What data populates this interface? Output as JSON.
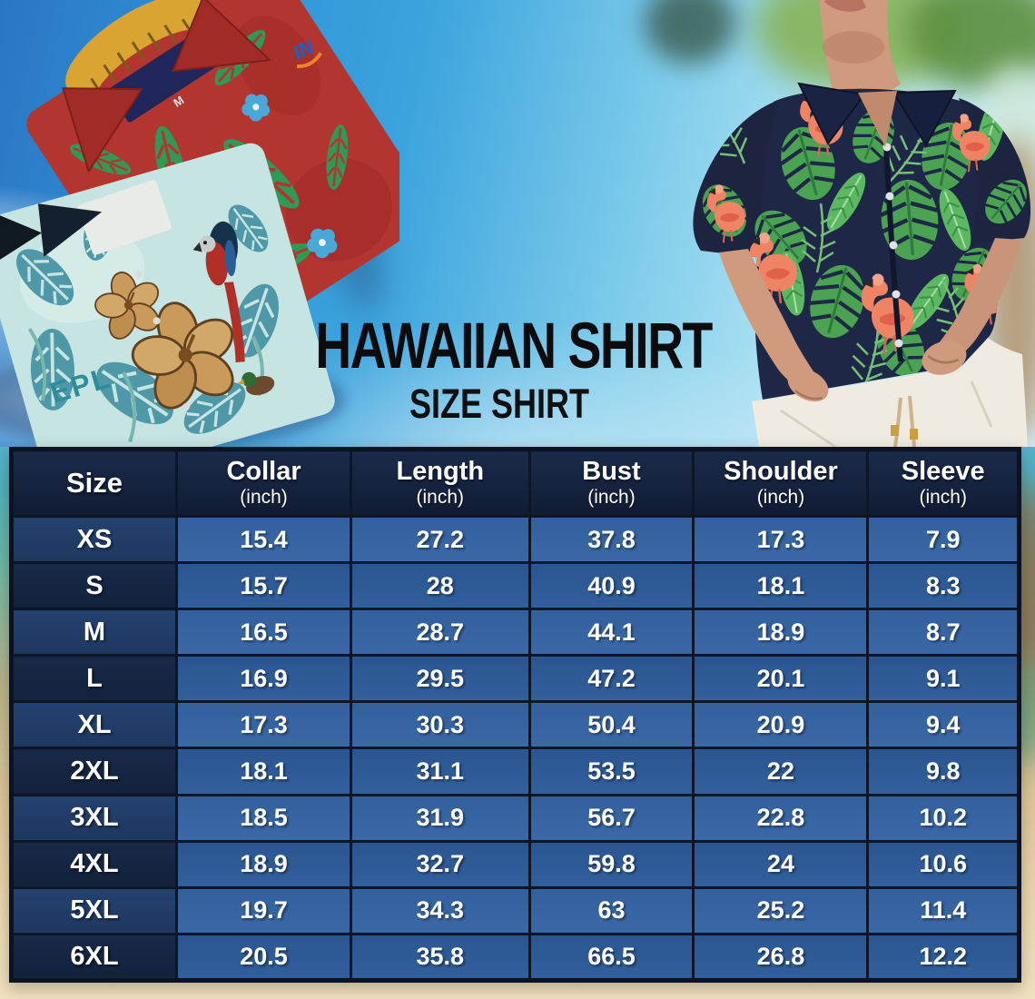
{
  "title": {
    "main": "HAWAIIAN SHIRT",
    "sub": "SIZE SHIRT"
  },
  "hero": {
    "red_shirt_tag": "M",
    "teal_shirt_text": "EPL",
    "logo_text": "IN"
  },
  "size_table": {
    "columns": [
      {
        "label": "Size",
        "unit": ""
      },
      {
        "label": "Collar",
        "unit": "(inch)"
      },
      {
        "label": "Length",
        "unit": "(inch)"
      },
      {
        "label": "Bust",
        "unit": "(inch)"
      },
      {
        "label": "Shoulder",
        "unit": "(inch)"
      },
      {
        "label": "Sleeve",
        "unit": "(inch)"
      }
    ],
    "rows": [
      {
        "size": "XS",
        "values": [
          "15.4",
          "27.2",
          "37.8",
          "17.3",
          "7.9"
        ]
      },
      {
        "size": "S",
        "values": [
          "15.7",
          "28",
          "40.9",
          "18.1",
          "8.3"
        ]
      },
      {
        "size": "M",
        "values": [
          "16.5",
          "28.7",
          "44.1",
          "18.9",
          "8.7"
        ]
      },
      {
        "size": "L",
        "values": [
          "16.9",
          "29.5",
          "47.2",
          "20.1",
          "9.1"
        ]
      },
      {
        "size": "XL",
        "values": [
          "17.3",
          "30.3",
          "50.4",
          "20.9",
          "9.4"
        ]
      },
      {
        "size": "2XL",
        "values": [
          "18.1",
          "31.1",
          "53.5",
          "22",
          "9.8"
        ]
      },
      {
        "size": "3XL",
        "values": [
          "18.5",
          "31.9",
          "56.7",
          "22.8",
          "10.2"
        ]
      },
      {
        "size": "4XL",
        "values": [
          "18.9",
          "32.7",
          "59.8",
          "24",
          "10.6"
        ]
      },
      {
        "size": "5XL",
        "values": [
          "19.7",
          "34.3",
          "63",
          "25.2",
          "11.4"
        ]
      },
      {
        "size": "6XL",
        "values": [
          "20.5",
          "35.8",
          "66.5",
          "26.8",
          "12.2"
        ]
      }
    ]
  },
  "chart_data": {
    "type": "table",
    "title": "Hawaiian Shirt Size Shirt",
    "columns": [
      "Size",
      "Collar (inch)",
      "Length (inch)",
      "Bust (inch)",
      "Shoulder (inch)",
      "Sleeve (inch)"
    ],
    "rows": [
      [
        "XS",
        "15.4",
        "27.2",
        "37.8",
        "17.3",
        "7.9"
      ],
      [
        "S",
        "15.7",
        "28",
        "40.9",
        "18.1",
        "8.3"
      ],
      [
        "M",
        "16.5",
        "28.7",
        "44.1",
        "18.9",
        "8.7"
      ],
      [
        "L",
        "16.9",
        "29.5",
        "47.2",
        "20.1",
        "9.1"
      ],
      [
        "XL",
        "17.3",
        "30.3",
        "50.4",
        "20.9",
        "9.4"
      ],
      [
        "2XL",
        "18.1",
        "31.1",
        "53.5",
        "22",
        "9.8"
      ],
      [
        "3XL",
        "18.5",
        "31.9",
        "56.7",
        "22.8",
        "10.2"
      ],
      [
        "4XL",
        "18.9",
        "32.7",
        "59.8",
        "24",
        "10.6"
      ],
      [
        "5XL",
        "19.7",
        "34.3",
        "63",
        "25.2",
        "11.4"
      ],
      [
        "6XL",
        "20.5",
        "35.8",
        "66.5",
        "26.8",
        "12.2"
      ]
    ]
  },
  "colors": {
    "header_bg": "#15223d",
    "grid_line": "#0c1626",
    "row_light": "#38669f",
    "row_dark": "#2e5b94",
    "size_col_light": "#203b66",
    "size_col_dark": "#152540",
    "title_color": "#0c0c0e",
    "sky_blue": "#2f93d6",
    "sand": "#ecd9b1",
    "shirt_navy": "#1e2746",
    "leaf_green": "#4aa252",
    "flamingo_pink": "#ef8465",
    "red_shirt": "#b23530",
    "teal_shirt": "#c6e4e2"
  }
}
